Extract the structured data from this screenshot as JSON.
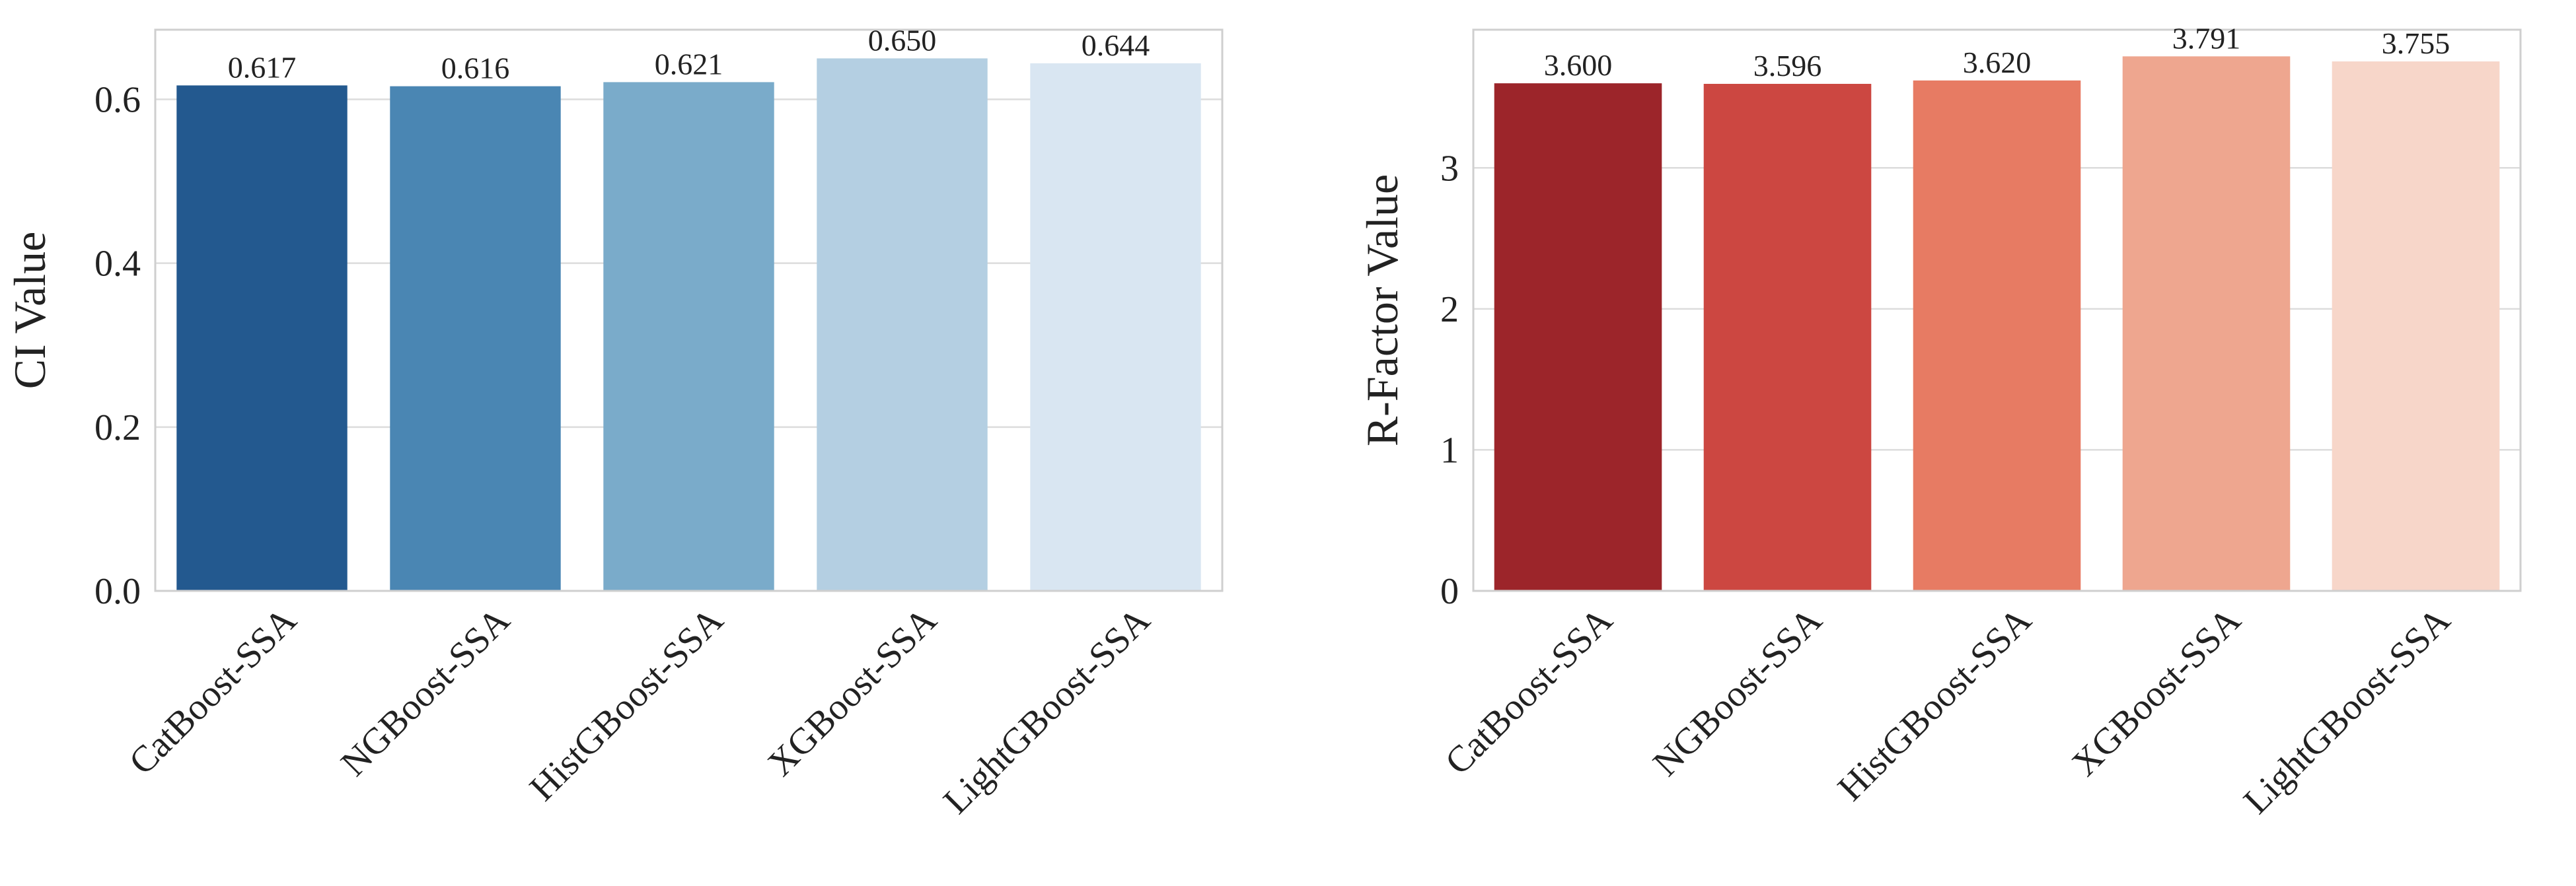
{
  "chart_data": [
    {
      "type": "bar",
      "title": "",
      "xlabel": "",
      "ylabel": "CI Value",
      "categories": [
        "CatBoost-SSA",
        "NGBoost-SSA",
        "HistGBoost-SSA",
        "XGBoost-SSA",
        "LightGBoost-SSA"
      ],
      "values": [
        0.617,
        0.616,
        0.621,
        0.65,
        0.644
      ],
      "value_labels": [
        "0.617",
        "0.616",
        "0.621",
        "0.650",
        "0.644"
      ],
      "ylim": [
        0,
        0.685
      ],
      "yticks": [
        0.0,
        0.2,
        0.4,
        0.6
      ],
      "ytick_labels": [
        "0.0",
        "0.2",
        "0.4",
        "0.6"
      ],
      "colors": [
        "#23598f",
        "#4a86b3",
        "#7aabca",
        "#b4cfe2",
        "#d9e6f2"
      ],
      "grid": true,
      "legend": false
    },
    {
      "type": "bar",
      "title": "",
      "xlabel": "",
      "ylabel": "R-Factor Value",
      "categories": [
        "CatBoost-SSA",
        "NGBoost-SSA",
        "HistGBoost-SSA",
        "XGBoost-SSA",
        "LightGBoost-SSA"
      ],
      "values": [
        3.6,
        3.596,
        3.62,
        3.791,
        3.755
      ],
      "value_labels": [
        "3.600",
        "3.596",
        "3.620",
        "3.791",
        "3.755"
      ],
      "ylim": [
        0,
        3.98
      ],
      "yticks": [
        0,
        1,
        2,
        3
      ],
      "ytick_labels": [
        "0",
        "1",
        "2",
        "3"
      ],
      "colors": [
        "#9c252a",
        "#cc4741",
        "#e77b63",
        "#eea68f",
        "#f7d6c9"
      ],
      "grid": true,
      "legend": false
    }
  ]
}
